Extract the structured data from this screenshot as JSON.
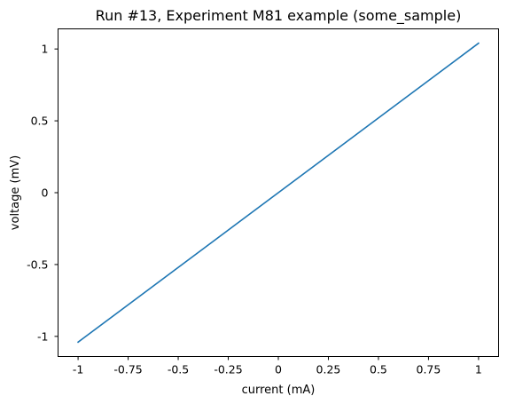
{
  "chart_data": {
    "type": "line",
    "title": "Run #13, Experiment M81 example (some_sample)",
    "xlabel": "current (mA)",
    "ylabel": "voltage (mV)",
    "xlim": [
      -1.1,
      1.1
    ],
    "ylim": [
      -1.14,
      1.14
    ],
    "x_ticks": [
      -1,
      -0.75,
      -0.5,
      -0.25,
      0,
      0.25,
      0.5,
      0.75,
      1
    ],
    "x_tick_labels": [
      "-1",
      "-0.75",
      "-0.5",
      "-0.25",
      "0",
      "0.25",
      "0.5",
      "0.75",
      "1"
    ],
    "y_ticks": [
      -1,
      -0.5,
      0,
      0.5,
      1
    ],
    "y_tick_labels": [
      "-1",
      "-0.5",
      "0",
      "0.5",
      "1"
    ],
    "grid": false,
    "series": [
      {
        "color": "#1f77b4",
        "x": [
          -1,
          1
        ],
        "y": [
          -1.04,
          1.04
        ]
      }
    ]
  }
}
